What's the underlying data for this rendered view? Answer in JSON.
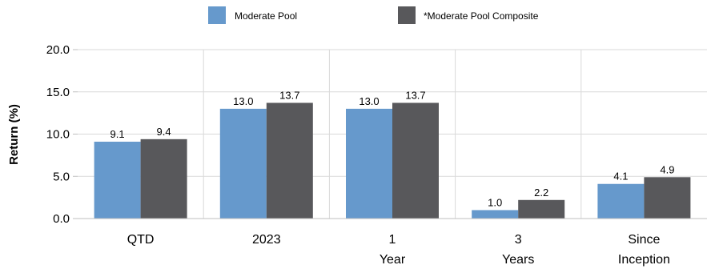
{
  "chart_data": {
    "type": "bar",
    "categories": [
      [
        "QTD"
      ],
      [
        "2023"
      ],
      [
        "1",
        "Year"
      ],
      [
        "3",
        "Years"
      ],
      [
        "Since",
        "Inception"
      ]
    ],
    "series": [
      {
        "name": "Moderate Pool",
        "values": [
          9.1,
          13.0,
          13.0,
          1.0,
          4.1
        ],
        "labels": [
          "9.1",
          "13.0",
          "13.0",
          "1.0",
          "4.1"
        ],
        "color": "#6699cc"
      },
      {
        "name": "*Moderate Pool Composite",
        "values": [
          9.4,
          13.7,
          13.7,
          2.2,
          4.9
        ],
        "labels": [
          "9.4",
          "13.7",
          "13.7",
          "2.2",
          "4.9"
        ],
        "color": "#58585b"
      }
    ],
    "title": "",
    "xlabel": "",
    "ylabel": "Return (%)",
    "ylim": [
      0,
      20
    ],
    "yticks": [
      "0.0",
      "5.0",
      "10.0",
      "15.0",
      "20.0"
    ],
    "ytick_values": [
      0,
      5,
      10,
      15,
      20
    ],
    "grid": true,
    "legend": "top-center",
    "colors": {
      "grid": "#d9d9d9",
      "axis": "#bfbfbf"
    }
  }
}
